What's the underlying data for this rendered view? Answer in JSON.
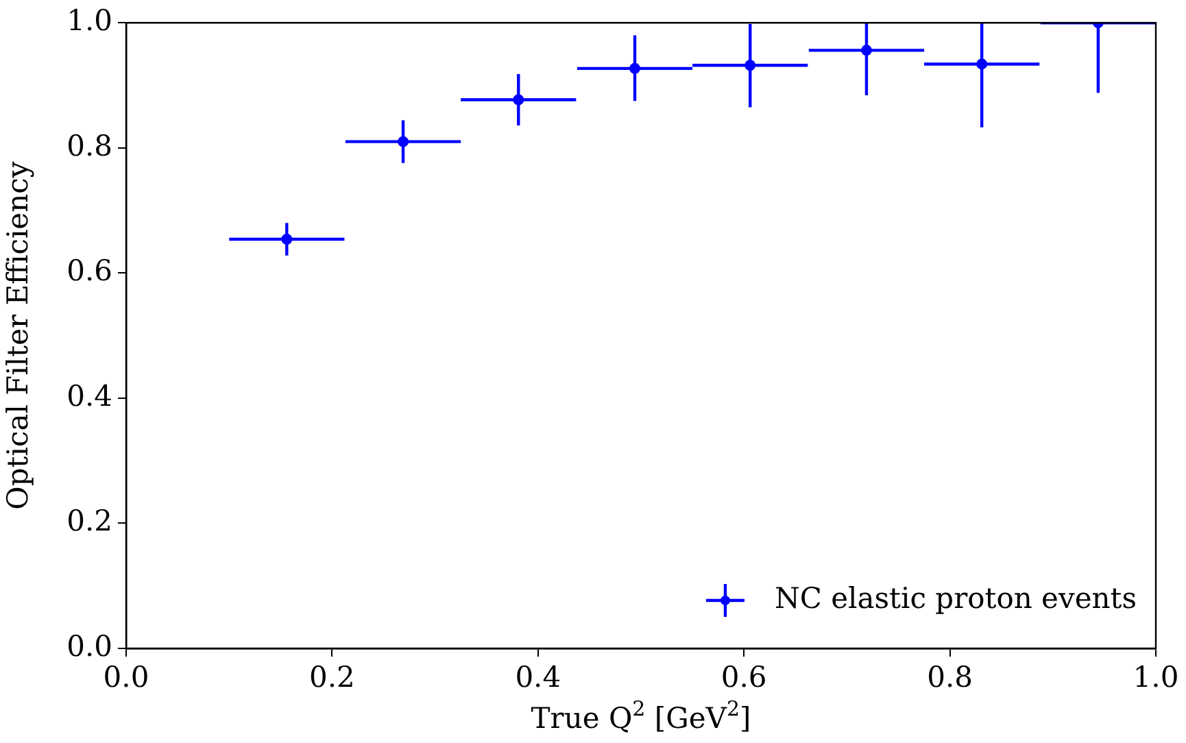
{
  "chart_data": {
    "type": "scatter",
    "xlabel": "True Q$^{2}$ [GeV$^{2}$]",
    "ylabel": "Optical Filter Efficiency",
    "x": [
      0.156,
      0.269,
      0.381,
      0.494,
      0.606,
      0.719,
      0.831,
      0.944
    ],
    "series": [
      {
        "name": "NC elastic proton events",
        "color": "#0000ff",
        "values": [
          0.654,
          0.81,
          0.877,
          0.927,
          0.932,
          0.956,
          0.934,
          1.0
        ],
        "errors": [
          [
            0.628,
            0.68
          ],
          [
            0.776,
            0.844
          ],
          [
            0.836,
            0.918
          ],
          [
            0.875,
            0.98
          ],
          [
            0.865,
            0.998
          ],
          [
            0.884,
            1.0
          ],
          [
            0.833,
            1.0
          ],
          [
            0.888,
            1.0
          ]
        ],
        "xerrors": [
          0.056,
          0.056,
          0.056,
          0.056,
          0.056,
          0.056,
          0.056,
          0.056
        ]
      }
    ],
    "xlim": [
      0,
      1
    ],
    "ylim": [
      0,
      1
    ],
    "xticks": [
      {
        "value": 0,
        "label": "0.0"
      },
      {
        "value": 0.2,
        "label": "0.2"
      },
      {
        "value": 0.4,
        "label": "0.4"
      },
      {
        "value": 0.6,
        "label": "0.6"
      },
      {
        "value": 0.8,
        "label": "0.8"
      },
      {
        "value": 1,
        "label": "1.0"
      }
    ],
    "yticks": [
      {
        "value": 0,
        "label": "0.0"
      },
      {
        "value": 0.2,
        "label": "0.2"
      },
      {
        "value": 0.4,
        "label": "0.4"
      },
      {
        "value": 0.6,
        "label": "0.6"
      },
      {
        "value": 0.8,
        "label": "0.8"
      },
      {
        "value": 1,
        "label": "1.0"
      }
    ],
    "grid": false,
    "legend": "bottom right",
    "marker": "circle"
  }
}
